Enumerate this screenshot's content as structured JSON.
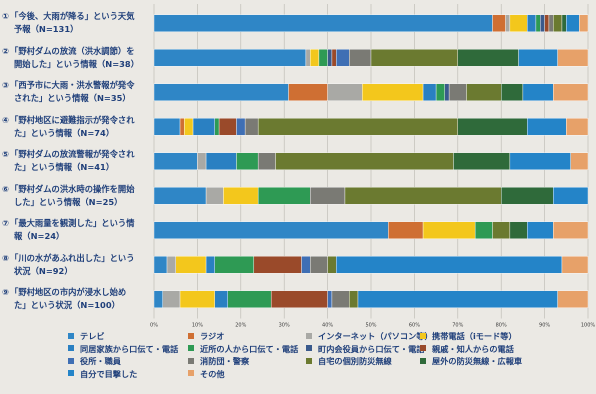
{
  "chart_data": {
    "type": "bar",
    "orientation": "horizontal",
    "stacked": true,
    "percent": true,
    "xlim": [
      0,
      100
    ],
    "ticks": [
      "0%",
      "10%",
      "20%",
      "30%",
      "40%",
      "50%",
      "60%",
      "70%",
      "80%",
      "90%",
      "100%"
    ],
    "categories": [
      {
        "num": "①",
        "line1": "「今後、大雨が降る」という天気",
        "line2": "予報（N=131）"
      },
      {
        "num": "②",
        "line1": "「野村ダムの放流（洪水調節）を",
        "line2": "開始した」という情報（N=38）"
      },
      {
        "num": "③",
        "line1": "「西予市に大雨・洪水警報が発令",
        "line2": "された」という情報（N=35）"
      },
      {
        "num": "④",
        "line1": "「野村地区に避難指示が発令され",
        "line2": "た」という情報（N=74）"
      },
      {
        "num": "⑤",
        "line1": "「野村ダムの放流警報が発令され",
        "line2": "た」という情報（N=41）"
      },
      {
        "num": "⑥",
        "line1": "「野村ダムの洪水時の操作を開始",
        "line2": "した」という情報（N=25）"
      },
      {
        "num": "⑦",
        "line1": "「最大雨量を観測した」という情",
        "line2": "報（N=24）"
      },
      {
        "num": "⑧",
        "line1": "「川の水があふれ出した」という",
        "line2": "状況（N=92）"
      },
      {
        "num": "⑨",
        "line1": "「野村地区の市内が浸水し始め",
        "line2": "た」という状況（N=100）"
      }
    ],
    "series": [
      {
        "name": "テレビ",
        "color": "#2f86c6",
        "values": [
          78,
          35,
          31,
          6,
          10,
          12,
          54,
          3,
          2
        ]
      },
      {
        "name": "ラジオ",
        "color": "#cf6f33",
        "values": [
          3,
          0,
          9,
          1,
          0,
          0,
          8,
          0,
          0
        ]
      },
      {
        "name": "インターネット（パソコン等）",
        "color": "#a9a9a5",
        "values": [
          1,
          1,
          8,
          0,
          2,
          4,
          0,
          2,
          4
        ]
      },
      {
        "name": "携帯電話（iモード等）",
        "color": "#f3c71c",
        "values": [
          4,
          2,
          14,
          2,
          0,
          8,
          12,
          7,
          8
        ]
      },
      {
        "name": "同居家族から口伝て・電話",
        "color": "#2a80c2",
        "values": [
          2,
          0,
          3,
          5,
          7,
          0,
          0,
          2,
          3
        ]
      },
      {
        "name": "近所の人から口伝て・電話",
        "color": "#2e9a54",
        "values": [
          1,
          2,
          2,
          1,
          5,
          12,
          4,
          9,
          10
        ]
      },
      {
        "name": "町内会役員から口伝て・電話",
        "color": "#3a5a8c",
        "values": [
          1,
          1,
          1,
          0,
          0,
          0,
          0,
          0,
          0
        ]
      },
      {
        "name": "親戚・知人からの電話",
        "color": "#9a4a2a",
        "values": [
          1,
          1,
          0,
          4,
          0,
          0,
          0,
          11,
          13
        ]
      },
      {
        "name": "役所・職員",
        "color": "#3f6fb4",
        "values": [
          0,
          3,
          0,
          2,
          0,
          0,
          0,
          2,
          1
        ]
      },
      {
        "name": "消防団・警察",
        "color": "#7a7a74",
        "values": [
          1,
          5,
          4,
          3,
          4,
          8,
          0,
          4,
          4
        ]
      },
      {
        "name": "自宅の個別防災無線",
        "color": "#6b7a30",
        "values": [
          2,
          20,
          8,
          46,
          41,
          36,
          4,
          2,
          2
        ]
      },
      {
        "name": "屋外の防災無線・広報車",
        "color": "#2f6a3a",
        "values": [
          1,
          14,
          5,
          16,
          13,
          12,
          4,
          0,
          0
        ]
      },
      {
        "name": "自分で目撃した",
        "color": "#2484c8",
        "values": [
          3,
          9,
          7,
          9,
          14,
          8,
          6,
          52,
          46
        ]
      },
      {
        "name": "その他",
        "color": "#e7a169",
        "values": [
          2,
          7,
          8,
          5,
          4,
          0,
          8,
          6,
          7
        ]
      }
    ]
  }
}
